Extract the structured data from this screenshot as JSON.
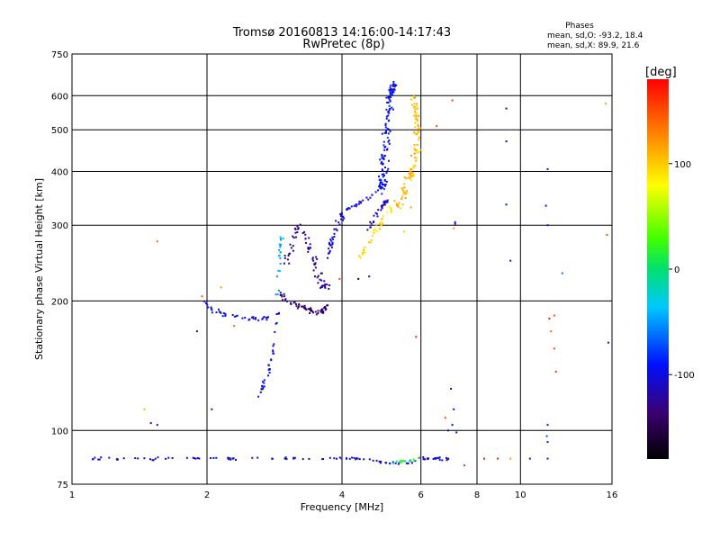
{
  "chart_data": {
    "type": "scatter",
    "title": "Tromsø 20160813 14:16:00-14:17:43",
    "subtitle": "RwPretec (8p)",
    "xlabel": "Frequency [MHz]",
    "ylabel": "Stationary phase Virtual Height [km]",
    "x_scale": "log",
    "y_scale": "log",
    "xlim": [
      1,
      16
    ],
    "ylim": [
      75,
      750
    ],
    "x_ticks": [
      1,
      2,
      4,
      6,
      8,
      10,
      16
    ],
    "x_tick_labels": [
      "1",
      "2",
      "4",
      "6",
      "8",
      "10",
      "16"
    ],
    "y_ticks": [
      75,
      100,
      200,
      300,
      400,
      500,
      600,
      750
    ],
    "y_tick_labels": [
      "75",
      "100",
      "200",
      "300",
      "400",
      "500",
      "600",
      "750"
    ],
    "grid": true,
    "phases_header": "Phases",
    "phases_stats": [
      "mean, sd,O: -93.2, 18.4",
      "mean, sd,X:  89.9, 21.6"
    ],
    "colorbar": {
      "label": "[deg]",
      "min": -180,
      "max": 180,
      "ticks": [
        100,
        0,
        -100
      ],
      "tick_labels": [
        "100",
        "0",
        "-100"
      ]
    },
    "traces": [
      {
        "points": [
          [
            1.95,
            200
          ],
          [
            2.05,
            191
          ],
          [
            2.2,
            186
          ],
          [
            2.4,
            183
          ],
          [
            2.6,
            182
          ],
          [
            2.75,
            184
          ]
        ],
        "phase": -105,
        "spread": 0.02,
        "count": 40
      },
      {
        "points": [
          [
            2.55,
            118
          ],
          [
            2.62,
            122
          ],
          [
            2.7,
            130
          ],
          [
            2.75,
            140
          ],
          [
            2.8,
            152
          ],
          [
            2.83,
            165
          ],
          [
            2.86,
            180
          ],
          [
            2.9,
            196
          ]
        ],
        "phase": -100,
        "spread": 0.018,
        "count": 34
      },
      {
        "points": [
          [
            2.86,
            205
          ],
          [
            2.88,
            225
          ],
          [
            2.9,
            250
          ],
          [
            2.92,
            275
          ],
          [
            2.93,
            290
          ]
        ],
        "phase": -45,
        "spread": 0.015,
        "count": 22
      },
      {
        "points": [
          [
            2.9,
            210
          ],
          [
            3.0,
            200
          ],
          [
            3.2,
            196
          ],
          [
            3.4,
            190
          ],
          [
            3.6,
            188
          ],
          [
            3.7,
            195
          ]
        ],
        "phase": -135,
        "spread": 0.025,
        "count": 60
      },
      {
        "points": [
          [
            3.0,
            240
          ],
          [
            3.1,
            270
          ],
          [
            3.2,
            300
          ],
          [
            3.3,
            285
          ],
          [
            3.4,
            260
          ],
          [
            3.5,
            240
          ],
          [
            3.6,
            220
          ],
          [
            3.7,
            215
          ]
        ],
        "phase": -125,
        "spread": 0.03,
        "count": 70
      },
      {
        "points": [
          [
            3.7,
            250
          ],
          [
            3.8,
            275
          ],
          [
            3.9,
            300
          ],
          [
            4.0,
            318
          ],
          [
            4.2,
            330
          ],
          [
            4.5,
            345
          ],
          [
            4.8,
            360
          ],
          [
            5.0,
            378
          ]
        ],
        "phase": -100,
        "spread": 0.02,
        "count": 70
      },
      {
        "points": [
          [
            4.5,
            290
          ],
          [
            4.7,
            310
          ],
          [
            4.9,
            330
          ],
          [
            5.05,
            345
          ]
        ],
        "phase": -110,
        "spread": 0.02,
        "count": 30
      },
      {
        "points": [
          [
            4.9,
            360
          ],
          [
            4.95,
            400
          ],
          [
            5.0,
            450
          ],
          [
            5.05,
            500
          ],
          [
            5.1,
            560
          ],
          [
            5.15,
            620
          ],
          [
            5.2,
            640
          ]
        ],
        "phase": -95,
        "spread": 0.03,
        "count": 110
      },
      {
        "points": [
          [
            4.35,
            250
          ],
          [
            4.5,
            262
          ],
          [
            4.7,
            285
          ],
          [
            4.9,
            305
          ],
          [
            5.1,
            325
          ],
          [
            5.3,
            340
          ]
        ],
        "phase": 95,
        "spread": 0.02,
        "count": 36
      },
      {
        "points": [
          [
            5.3,
            330
          ],
          [
            5.45,
            350
          ],
          [
            5.6,
            375
          ],
          [
            5.75,
            400
          ],
          [
            5.85,
            450
          ],
          [
            5.9,
            500
          ],
          [
            5.85,
            560
          ],
          [
            5.8,
            600
          ]
        ],
        "phase": 105,
        "spread": 0.03,
        "count": 110
      },
      {
        "points": [
          [
            1.05,
            86
          ],
          [
            1.5,
            86
          ],
          [
            2.0,
            86
          ],
          [
            2.5,
            86
          ],
          [
            3.0,
            86
          ],
          [
            3.5,
            86
          ],
          [
            4.0,
            86
          ],
          [
            4.5,
            86
          ],
          [
            5.0,
            84
          ],
          [
            5.5,
            84
          ],
          [
            6.0,
            86
          ],
          [
            6.5,
            86
          ],
          [
            7.0,
            86
          ]
        ],
        "phase": -105,
        "spread": 0.012,
        "count": 110
      },
      {
        "points": [
          [
            5.2,
            84
          ],
          [
            5.6,
            85
          ],
          [
            6.0,
            86
          ]
        ],
        "phase": 10,
        "spread": 0.012,
        "count": 14
      }
    ],
    "scattered_points": [
      [
        1.55,
        275,
        140
      ],
      [
        1.45,
        112,
        110
      ],
      [
        1.5,
        104,
        -110
      ],
      [
        1.55,
        103,
        -100
      ],
      [
        1.9,
        170,
        -110
      ],
      [
        1.95,
        205,
        150
      ],
      [
        2.15,
        215,
        120
      ],
      [
        2.05,
        112,
        -110
      ],
      [
        2.3,
        175,
        140
      ],
      [
        3.95,
        225,
        150
      ],
      [
        4.35,
        225,
        -170
      ],
      [
        4.6,
        228,
        -100
      ],
      [
        5.5,
        290,
        100
      ],
      [
        5.7,
        330,
        120
      ],
      [
        6.5,
        510,
        150
      ],
      [
        7.05,
        585,
        160
      ],
      [
        7.1,
        295,
        120
      ],
      [
        7.15,
        302,
        -100
      ],
      [
        7.15,
        305,
        -100
      ],
      [
        7.0,
        125,
        -100
      ],
      [
        7.1,
        112,
        -100
      ],
      [
        7.05,
        103,
        -100
      ],
      [
        6.9,
        100,
        -110
      ],
      [
        7.2,
        99,
        -100
      ],
      [
        6.8,
        107,
        150
      ],
      [
        5.85,
        165,
        170
      ],
      [
        9.3,
        560,
        -100
      ],
      [
        9.3,
        470,
        -95
      ],
      [
        9.3,
        335,
        -90
      ],
      [
        9.5,
        248,
        -100
      ],
      [
        11.5,
        405,
        -105
      ],
      [
        11.4,
        333,
        -100
      ],
      [
        11.5,
        300,
        -100
      ],
      [
        12.4,
        232,
        -60
      ],
      [
        11.6,
        182,
        170
      ],
      [
        11.9,
        185,
        150
      ],
      [
        11.7,
        170,
        140
      ],
      [
        11.9,
        155,
        150
      ],
      [
        12.0,
        137,
        160
      ],
      [
        11.5,
        103,
        -100
      ],
      [
        11.45,
        97,
        -70
      ],
      [
        11.5,
        94,
        -100
      ],
      [
        15.5,
        575,
        120
      ],
      [
        15.6,
        285,
        150
      ],
      [
        15.7,
        160,
        -100
      ],
      [
        8.3,
        86,
        170
      ],
      [
        8.9,
        86,
        170
      ],
      [
        9.5,
        86,
        120
      ],
      [
        10.5,
        86,
        -100
      ],
      [
        11.5,
        86,
        -100
      ],
      [
        7.5,
        83,
        160
      ]
    ]
  }
}
